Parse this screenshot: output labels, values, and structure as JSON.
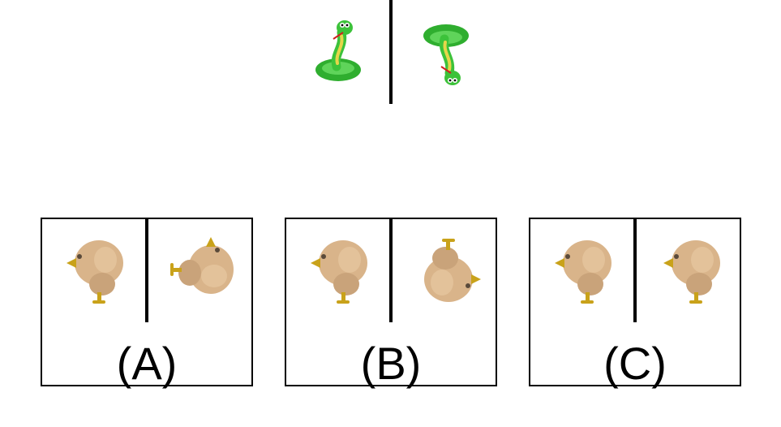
{
  "prompt": {
    "left_icon": "green-snake-icon",
    "right_icon": "green-snake-rotated-icon"
  },
  "options": [
    {
      "label": "(A)",
      "left_icon": "bird-icon",
      "right_icon": "bird-rotated-sideways-icon"
    },
    {
      "label": "(B)",
      "left_icon": "bird-icon",
      "right_icon": "bird-upside-down-icon"
    },
    {
      "label": "(C)",
      "left_icon": "bird-icon",
      "right_icon": "bird-icon"
    }
  ],
  "colors": {
    "snake_green": "#3cc23a",
    "snake_dark": "#1f8f22",
    "snake_belly": "#e6d64a",
    "snake_tongue": "#d02020",
    "bird_body": "#d9b48a",
    "bird_shadow": "#b89068",
    "bird_beak": "#c9a21a"
  }
}
